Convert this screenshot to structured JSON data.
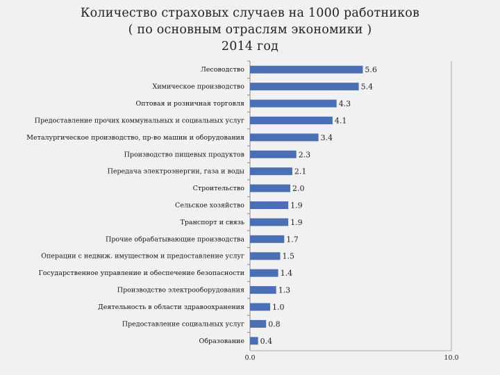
{
  "chart_data": {
    "type": "bar",
    "orientation": "horizontal",
    "title": [
      "Количество страховых случаев на 1000 работников",
      "( по основным отраслям экономики )",
      "2014 год"
    ],
    "categories": [
      "Лесоводство",
      "Химическое производство",
      "Оптовая и розничная торговля",
      "Предоставление прочих коммунальных и социальных услуг",
      "Металургическое производство, пр-во машин и оборудования",
      "Производство пищевых продуктов",
      "Передача электроэнергии, газа и воды",
      "Строительство",
      "Сельское хозяйство",
      "Транспорт и связь",
      "Прочие обрабатывающие производства",
      "Операции с недвиж. имуществом и предоставление услуг",
      "Государственное управление и обеспечение безопасности",
      "Производство электрооборудования",
      "Деятельность в области здравоохранения",
      "Предоставление социальных услуг",
      "Образование"
    ],
    "values": [
      5.6,
      5.4,
      4.3,
      4.1,
      3.4,
      2.3,
      2.1,
      2.0,
      1.9,
      1.9,
      1.7,
      1.5,
      1.4,
      1.3,
      1.0,
      0.8,
      0.4
    ],
    "value_labels": [
      "5.6",
      "5.4",
      "4.3",
      "4.1",
      "3.4",
      "2.3",
      "2.1",
      "2.0",
      "1.9",
      "1.9",
      "1.7",
      "1.5",
      "1.4",
      "1.3",
      "1.0",
      "0.8",
      "0.4"
    ],
    "xlim": [
      0,
      10
    ],
    "xticks": [
      "0.0",
      "10.0"
    ],
    "bar_color": "#4a6fb5",
    "grid": false,
    "legend": "none"
  }
}
